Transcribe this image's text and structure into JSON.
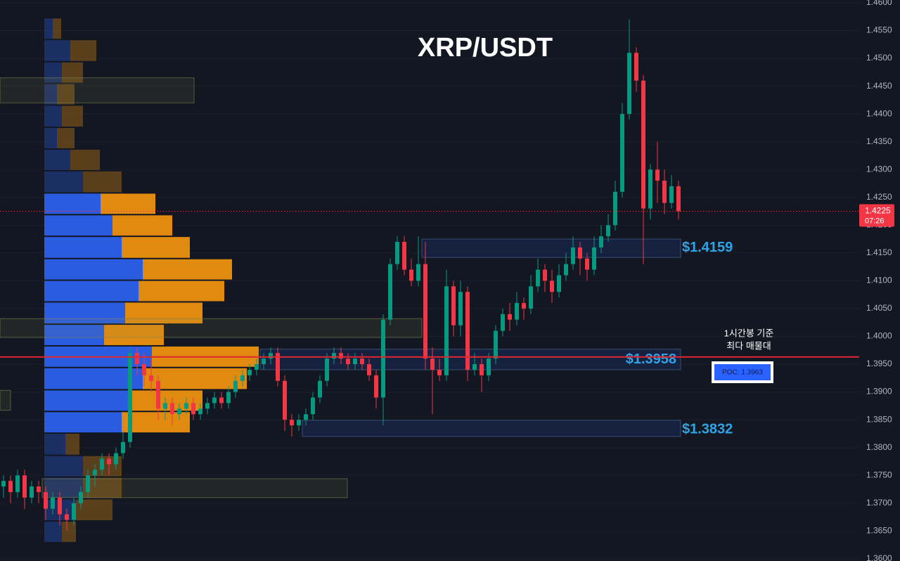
{
  "chart_data": {
    "type": "candlestick",
    "title": "XRP/USDT",
    "ylim": [
      1.3596,
      1.4605
    ],
    "yticks": [
      {
        "value": 1.36,
        "label": "1.3600"
      },
      {
        "value": 1.365,
        "label": "1.3650"
      },
      {
        "value": 1.37,
        "label": "1.3700"
      },
      {
        "value": 1.375,
        "label": "1.3750"
      },
      {
        "value": 1.38,
        "label": "1.3800"
      },
      {
        "value": 1.385,
        "label": "1.3850"
      },
      {
        "value": 1.39,
        "label": "1.3900"
      },
      {
        "value": 1.395,
        "label": "1.3950"
      },
      {
        "value": 1.4,
        "label": "1.4000"
      },
      {
        "value": 1.405,
        "label": "1.4050"
      },
      {
        "value": 1.41,
        "label": "1.4100"
      },
      {
        "value": 1.415,
        "label": "1.4150"
      },
      {
        "value": 1.42,
        "label": "1.4200"
      },
      {
        "value": 1.425,
        "label": "1.4250"
      },
      {
        "value": 1.43,
        "label": "1.4300"
      },
      {
        "value": 1.435,
        "label": "1.4350"
      },
      {
        "value": 1.44,
        "label": "1.4400"
      },
      {
        "value": 1.445,
        "label": "1.4450"
      },
      {
        "value": 1.45,
        "label": "1.4500"
      },
      {
        "value": 1.455,
        "label": "1.4550"
      },
      {
        "value": 1.46,
        "label": "1.4600"
      }
    ],
    "grid": true,
    "up_color": "#089981",
    "down_color": "#f23645",
    "ohlc": [
      [
        1.373,
        1.375,
        1.371,
        1.374
      ],
      [
        1.374,
        1.375,
        1.37,
        1.372
      ],
      [
        1.372,
        1.376,
        1.371,
        1.375
      ],
      [
        1.375,
        1.376,
        1.369,
        1.371
      ],
      [
        1.371,
        1.374,
        1.37,
        1.373
      ],
      [
        1.373,
        1.374,
        1.37,
        1.372
      ],
      [
        1.372,
        1.373,
        1.367,
        1.369
      ],
      [
        1.369,
        1.372,
        1.368,
        1.371
      ],
      [
        1.371,
        1.372,
        1.366,
        1.368
      ],
      [
        1.368,
        1.369,
        1.365,
        1.367
      ],
      [
        1.367,
        1.371,
        1.366,
        1.37
      ],
      [
        1.37,
        1.373,
        1.369,
        1.372
      ],
      [
        1.372,
        1.376,
        1.371,
        1.375
      ],
      [
        1.375,
        1.377,
        1.373,
        1.376
      ],
      [
        1.376,
        1.379,
        1.375,
        1.378
      ],
      [
        1.378,
        1.379,
        1.375,
        1.377
      ],
      [
        1.377,
        1.38,
        1.376,
        1.379
      ],
      [
        1.379,
        1.383,
        1.378,
        1.381
      ],
      [
        1.381,
        1.398,
        1.38,
        1.397
      ],
      [
        1.397,
        1.398,
        1.393,
        1.395
      ],
      [
        1.395,
        1.397,
        1.391,
        1.393
      ],
      [
        1.393,
        1.396,
        1.39,
        1.392
      ],
      [
        1.392,
        1.393,
        1.385,
        1.387
      ],
      [
        1.387,
        1.389,
        1.385,
        1.388
      ],
      [
        1.388,
        1.389,
        1.384,
        1.386
      ],
      [
        1.386,
        1.388,
        1.385,
        1.387
      ],
      [
        1.387,
        1.389,
        1.386,
        1.388
      ],
      [
        1.388,
        1.389,
        1.385,
        1.386
      ],
      [
        1.386,
        1.388,
        1.385,
        1.387
      ],
      [
        1.387,
        1.389,
        1.386,
        1.388
      ],
      [
        1.388,
        1.39,
        1.387,
        1.389
      ],
      [
        1.389,
        1.39,
        1.387,
        1.388
      ],
      [
        1.388,
        1.391,
        1.387,
        1.39
      ],
      [
        1.39,
        1.393,
        1.389,
        1.392
      ],
      [
        1.392,
        1.394,
        1.391,
        1.393
      ],
      [
        1.393,
        1.395,
        1.392,
        1.394
      ],
      [
        1.394,
        1.396,
        1.393,
        1.395
      ],
      [
        1.395,
        1.397,
        1.394,
        1.396
      ],
      [
        1.396,
        1.398,
        1.395,
        1.397
      ],
      [
        1.397,
        1.398,
        1.391,
        1.392
      ],
      [
        1.392,
        1.393,
        1.383,
        1.385
      ],
      [
        1.385,
        1.386,
        1.382,
        1.384
      ],
      [
        1.384,
        1.386,
        1.383,
        1.385
      ],
      [
        1.385,
        1.387,
        1.384,
        1.386
      ],
      [
        1.386,
        1.39,
        1.385,
        1.389
      ],
      [
        1.389,
        1.393,
        1.388,
        1.392
      ],
      [
        1.392,
        1.397,
        1.391,
        1.396
      ],
      [
        1.396,
        1.398,
        1.395,
        1.397
      ],
      [
        1.397,
        1.398,
        1.395,
        1.396
      ],
      [
        1.396,
        1.397,
        1.394,
        1.395
      ],
      [
        1.395,
        1.397,
        1.394,
        1.396
      ],
      [
        1.396,
        1.397,
        1.394,
        1.395
      ],
      [
        1.395,
        1.396,
        1.392,
        1.393
      ],
      [
        1.393,
        1.394,
        1.387,
        1.389
      ],
      [
        1.389,
        1.404,
        1.384,
        1.403
      ],
      [
        1.403,
        1.414,
        1.402,
        1.413
      ],
      [
        1.413,
        1.418,
        1.412,
        1.417
      ],
      [
        1.417,
        1.418,
        1.411,
        1.412
      ],
      [
        1.412,
        1.414,
        1.409,
        1.41
      ],
      [
        1.41,
        1.418,
        1.409,
        1.413
      ],
      [
        1.413,
        1.417,
        1.394,
        1.396
      ],
      [
        1.396,
        1.398,
        1.386,
        1.394
      ],
      [
        1.394,
        1.396,
        1.392,
        1.393
      ],
      [
        1.393,
        1.412,
        1.392,
        1.409
      ],
      [
        1.409,
        1.41,
        1.4,
        1.402
      ],
      [
        1.402,
        1.41,
        1.4,
        1.408
      ],
      [
        1.408,
        1.409,
        1.392,
        1.394
      ],
      [
        1.394,
        1.397,
        1.393,
        1.395
      ],
      [
        1.395,
        1.396,
        1.39,
        1.393
      ],
      [
        1.393,
        1.397,
        1.392,
        1.396
      ],
      [
        1.396,
        1.402,
        1.395,
        1.401
      ],
      [
        1.401,
        1.405,
        1.4,
        1.404
      ],
      [
        1.404,
        1.406,
        1.401,
        1.403
      ],
      [
        1.403,
        1.408,
        1.402,
        1.406
      ],
      [
        1.406,
        1.407,
        1.403,
        1.405
      ],
      [
        1.405,
        1.411,
        1.404,
        1.409
      ],
      [
        1.409,
        1.414,
        1.408,
        1.412
      ],
      [
        1.412,
        1.413,
        1.408,
        1.41
      ],
      [
        1.41,
        1.412,
        1.406,
        1.408
      ],
      [
        1.408,
        1.413,
        1.407,
        1.411
      ],
      [
        1.411,
        1.415,
        1.41,
        1.413
      ],
      [
        1.413,
        1.418,
        1.412,
        1.416
      ],
      [
        1.416,
        1.417,
        1.411,
        1.414
      ],
      [
        1.414,
        1.415,
        1.41,
        1.412
      ],
      [
        1.412,
        1.418,
        1.411,
        1.416
      ],
      [
        1.416,
        1.42,
        1.415,
        1.418
      ],
      [
        1.418,
        1.422,
        1.417,
        1.42
      ],
      [
        1.42,
        1.428,
        1.419,
        1.426
      ],
      [
        1.426,
        1.442,
        1.425,
        1.44
      ],
      [
        1.44,
        1.457,
        1.439,
        1.451
      ],
      [
        1.451,
        1.452,
        1.444,
        1.446
      ],
      [
        1.446,
        1.447,
        1.413,
        1.423
      ],
      [
        1.423,
        1.431,
        1.421,
        1.43
      ],
      [
        1.43,
        1.435,
        1.424,
        1.428
      ],
      [
        1.428,
        1.43,
        1.422,
        1.424
      ],
      [
        1.424,
        1.429,
        1.423,
        1.427
      ],
      [
        1.427,
        1.428,
        1.421,
        1.4225
      ]
    ],
    "countdown": "07:26",
    "profile": {
      "bins": [
        1.3629,
        1.3668,
        1.3708,
        1.3747,
        1.3786,
        1.3826,
        1.3865,
        1.3904,
        1.3944,
        1.3983,
        1.4022,
        1.4062,
        1.4101,
        1.414,
        1.418,
        1.4219,
        1.4258,
        1.4298,
        1.4337,
        1.4376,
        1.4416,
        1.4455,
        1.4494,
        1.4534,
        1.4573
      ],
      "buy": [
        25,
        45,
        55,
        55,
        30,
        110,
        125,
        140,
        153,
        85,
        115,
        134,
        140,
        110,
        97,
        80,
        55,
        37,
        18,
        25,
        18,
        25,
        37,
        12
      ],
      "sell": [
        20,
        52,
        55,
        55,
        20,
        97,
        100,
        148,
        152,
        85,
        110,
        122,
        127,
        97,
        85,
        78,
        55,
        42,
        25,
        30,
        25,
        30,
        37,
        12
      ],
      "value_area": [
        1.3826,
        1.4258
      ],
      "buy_color": "#2a5ce0",
      "sell_color": "#e08a10"
    },
    "zones": [
      {
        "range": [
          1.4142,
          1.4175
        ],
        "label": {
          "value": 1.4159,
          "label": "$1.4159"
        }
      },
      {
        "range": [
          1.394,
          1.3977
        ],
        "label": {
          "value": 1.3958,
          "label": "$1.3958"
        }
      },
      {
        "range": [
          1.382,
          1.3849
        ],
        "label": {
          "value": 1.3832,
          "label": "$1.3832"
        }
      },
      {
        "range": [
          1.442,
          1.4465
        ]
      },
      {
        "range": [
          1.3998,
          1.4032
        ]
      },
      {
        "range": [
          1.3867,
          1.3903
        ]
      },
      {
        "range": [
          1.371,
          1.3744
        ]
      }
    ],
    "poc": {
      "value": 1.3963,
      "label": "POC: 1.3963"
    },
    "annotation": [
      "1시간봉 기준",
      "최다 매물대"
    ]
  }
}
